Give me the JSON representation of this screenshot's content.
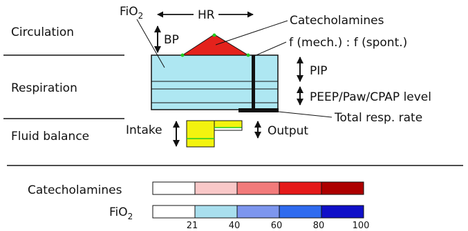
{
  "sections": {
    "circulation": "Circulation",
    "respiration": "Respiration",
    "fluid_balance": "Fluid balance"
  },
  "labels": {
    "fio2": "FiO2",
    "hr": "HR",
    "bp": "BP",
    "catecholamines": "Catecholamines",
    "f_ratio": "f (mech.) : f (spont.)",
    "pip": "PIP",
    "peep": "PEEP/Paw/CPAP level",
    "total_resp_rate": "Total resp. rate",
    "intake": "Intake",
    "output": "Output"
  },
  "legend": {
    "catecholamines_label": "Catecholamines",
    "fio2_label": "FiO2",
    "catecholamine_colors": [
      "#ffffff",
      "#f9c8c8",
      "#f27b7b",
      "#e51919",
      "#ad0000"
    ],
    "fio2_colors": [
      "#ffffff",
      "#a9dfee",
      "#7d96ee",
      "#2f6bef",
      "#1010c8"
    ],
    "ticks": [
      "21",
      "40",
      "60",
      "80",
      "100"
    ]
  },
  "colors": {
    "respiration_box": "#aee7f2",
    "triangle": "#e4221c",
    "intake": "#f3f30f",
    "outline": "#111111",
    "marker_green": "#22cc22"
  }
}
